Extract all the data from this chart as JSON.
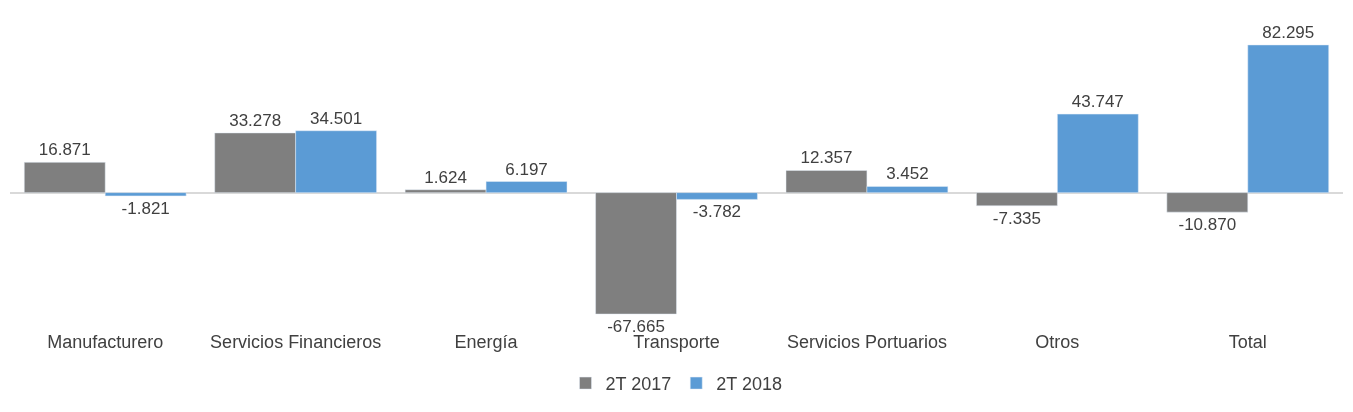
{
  "chart_data": {
    "type": "bar",
    "categories": [
      "Manufacturero",
      "Servicios Financieros",
      "Energía",
      "Transporte",
      "Servicios Portuarios",
      "Otros",
      "Total"
    ],
    "series": [
      {
        "name": "2T 2017",
        "color": "#7f7f7f",
        "values": [
          16871,
          33278,
          1624,
          -67665,
          12357,
          -7335,
          -10870
        ],
        "value_labels": [
          "16.871",
          "33.278",
          "1.624",
          "-67.665",
          "12.357",
          "-7.335",
          "-10.870"
        ]
      },
      {
        "name": "2T 2018",
        "color": "#5b9bd5",
        "values": [
          -1821,
          34501,
          6197,
          -3782,
          3452,
          43747,
          82295
        ],
        "value_labels": [
          "-1.821",
          "34.501",
          "6.197",
          "-3.782",
          "3.452",
          "43.747",
          "82.295"
        ]
      }
    ],
    "legend": "bottom"
  }
}
